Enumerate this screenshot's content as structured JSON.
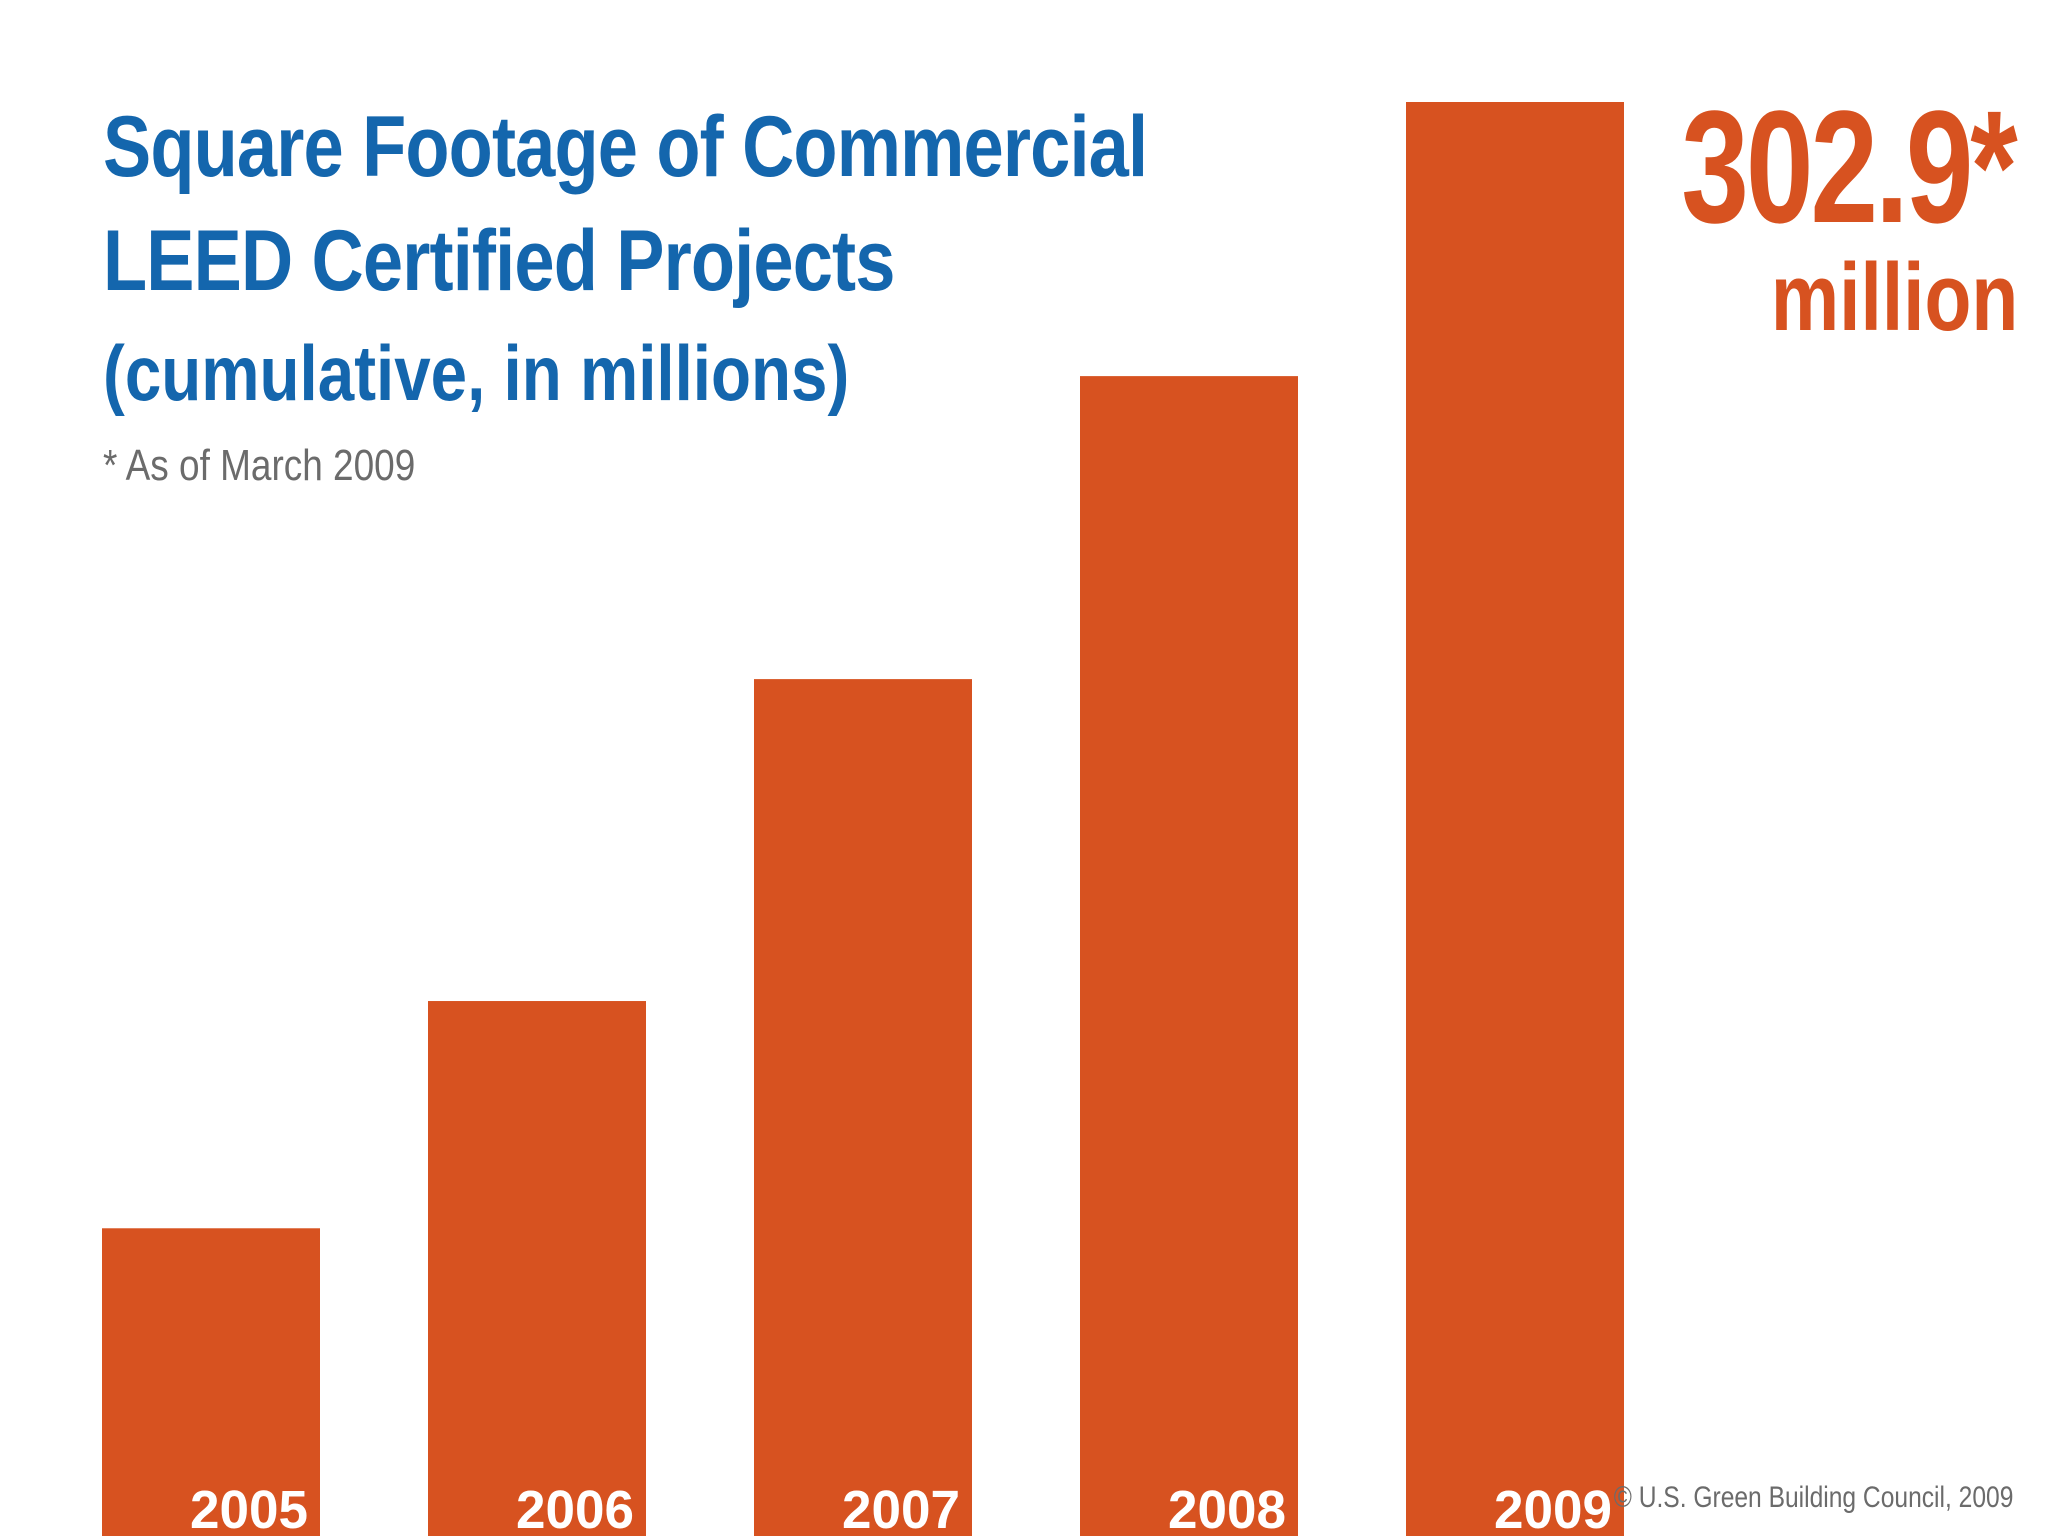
{
  "colors": {
    "title": "#1466ad",
    "bar": "#d75220",
    "bar_label": "#ffffff",
    "footnote": "#6b6b6b",
    "background": "#ffffff"
  },
  "chart_data": {
    "type": "bar",
    "title": "Square Footage of Commercial LEED Certified Projects",
    "title_lines": [
      "Square Footage of Commercial",
      "LEED Certified Projects"
    ],
    "subtitle": "(cumulative, in millions)",
    "footnote": "* As of March 2009",
    "categories": [
      "2005",
      "2006",
      "2007",
      "2008",
      "2009"
    ],
    "values": [
      65,
      113,
      181,
      245,
      302.9
    ],
    "ylim": [
      0,
      302.9
    ],
    "xlabel": "",
    "ylabel": "",
    "grid": false,
    "legend": "none",
    "callout": {
      "value": "302.9*",
      "unit": "million"
    },
    "source": "© U.S. Green Building Council, 2009"
  }
}
